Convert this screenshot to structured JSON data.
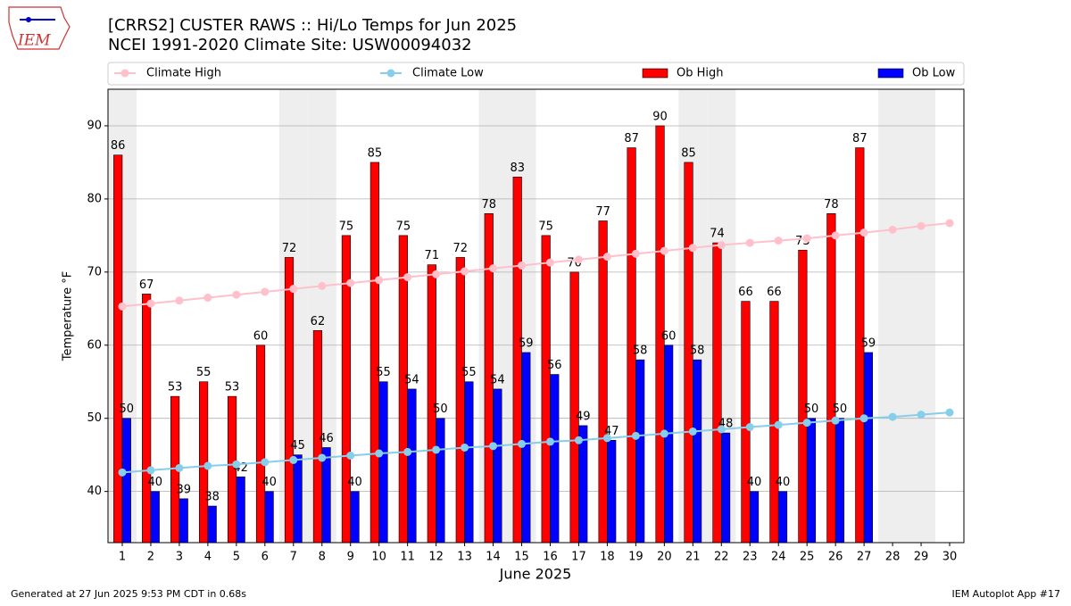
{
  "logo_text": "IEM",
  "footer_left": "Generated at 27 Jun 2025 9:53 PM CDT in 0.68s",
  "footer_right": "IEM Autoplot App #17",
  "chart_data": {
    "type": "bar",
    "title": "[CRRS2] CUSTER RAWS :: Hi/Lo Temps for Jun 2025",
    "subtitle": "NCEI 1991-2020 Climate Site: USW00094032",
    "x_label": "June 2025",
    "y_label": "Temperature °F",
    "x": [
      1,
      2,
      3,
      4,
      5,
      6,
      7,
      8,
      9,
      10,
      11,
      12,
      13,
      14,
      15,
      16,
      17,
      18,
      19,
      20,
      21,
      22,
      23,
      24,
      25,
      26,
      27,
      28,
      29,
      30
    ],
    "xlim": [
      0.5,
      30.5
    ],
    "xticks": [
      1,
      2,
      3,
      4,
      5,
      6,
      7,
      8,
      9,
      10,
      11,
      12,
      13,
      14,
      15,
      16,
      17,
      18,
      19,
      20,
      21,
      22,
      23,
      24,
      25,
      26,
      27,
      28,
      29,
      30
    ],
    "ylim": [
      33,
      95
    ],
    "yticks": [
      40,
      50,
      60,
      70,
      80,
      90
    ],
    "grid": "y",
    "shaded_days": [
      1,
      7,
      8,
      14,
      15,
      21,
      22,
      28,
      29
    ],
    "shade_color": "#eeeeee",
    "series": [
      {
        "name": "Climate High",
        "kind": "line",
        "color": "#ffc0cb",
        "values": [
          65.3,
          65.7,
          66.1,
          66.5,
          66.9,
          67.3,
          67.7,
          68.1,
          68.5,
          68.9,
          69.3,
          69.7,
          70.1,
          70.5,
          70.9,
          71.3,
          71.7,
          72.1,
          72.5,
          72.9,
          73.3,
          73.7,
          74.0,
          74.3,
          74.6,
          75.0,
          75.4,
          75.8,
          76.3,
          76.7
        ]
      },
      {
        "name": "Climate Low",
        "kind": "line",
        "color": "#87ceeb",
        "values": [
          42.6,
          42.9,
          43.2,
          43.5,
          43.7,
          44.0,
          44.3,
          44.6,
          44.9,
          45.2,
          45.4,
          45.7,
          46.0,
          46.2,
          46.5,
          46.8,
          47.0,
          47.3,
          47.6,
          47.9,
          48.2,
          48.5,
          48.8,
          49.1,
          49.4,
          49.7,
          50.0,
          50.2,
          50.5,
          50.8
        ]
      },
      {
        "name": "Ob High",
        "kind": "bar",
        "color": "#ff0000",
        "values": [
          86,
          67,
          53,
          55,
          53,
          60,
          72,
          62,
          75,
          85,
          75,
          71,
          72,
          78,
          83,
          75,
          70,
          77,
          87,
          90,
          85,
          74,
          66,
          66,
          73,
          78,
          87,
          null,
          null,
          null
        ]
      },
      {
        "name": "Ob Low",
        "kind": "bar",
        "color": "#0000ff",
        "values": [
          50,
          40,
          39,
          38,
          42,
          40,
          45,
          46,
          40,
          55,
          54,
          50,
          55,
          54,
          59,
          56,
          49,
          47,
          58,
          60,
          58,
          48,
          40,
          40,
          50,
          50,
          59,
          null,
          null,
          null
        ]
      }
    ]
  }
}
